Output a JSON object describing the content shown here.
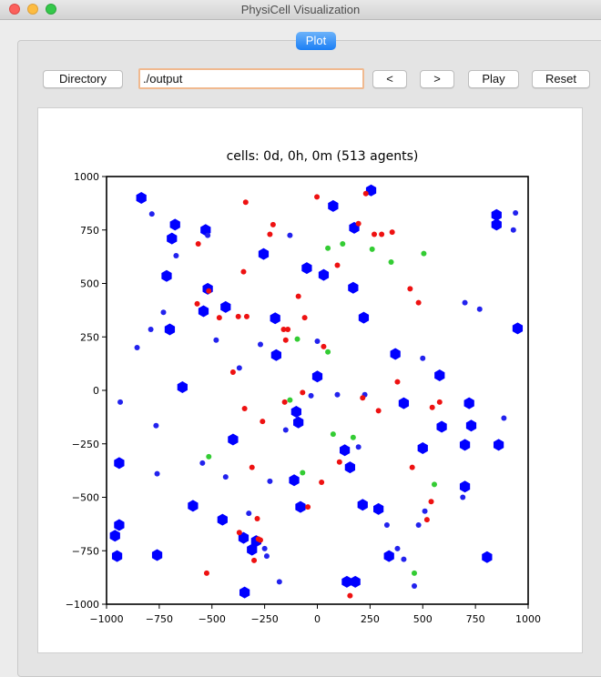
{
  "window": {
    "title": "PhysiCell Visualization"
  },
  "tabs": [
    {
      "label": "Plot"
    }
  ],
  "toolbar": {
    "directory_label": "Directory",
    "path_value": "./output",
    "prev_label": "<",
    "next_label": ">",
    "play_label": "Play",
    "reset_label": "Reset"
  },
  "chart_data": {
    "type": "scatter",
    "title": "cells: 0d, 0h, 0m (513 agents)",
    "xlabel": "",
    "ylabel": "",
    "xlim": [
      -1000,
      1000
    ],
    "ylim": [
      -1000,
      1000
    ],
    "xticks": [
      -1000,
      -750,
      -500,
      -250,
      0,
      250,
      500,
      750,
      1000
    ],
    "yticks": [
      -1000,
      -750,
      -500,
      -250,
      0,
      250,
      500,
      750,
      1000
    ],
    "grid": false,
    "colors": {
      "large": "#0000ff",
      "blue": "#2222ee",
      "red": "#ee1111",
      "green": "#33cc33"
    },
    "series": [
      {
        "kind": "large",
        "points": [
          [
            -835,
            900
          ],
          [
            -675,
            775
          ],
          [
            -530,
            750
          ],
          [
            -690,
            710
          ],
          [
            -255,
            638
          ],
          [
            -715,
            535
          ],
          [
            -50,
            572
          ],
          [
            75,
            862
          ],
          [
            255,
            935
          ],
          [
            175,
            760
          ],
          [
            30,
            540
          ],
          [
            -520,
            475
          ],
          [
            -435,
            390
          ],
          [
            -540,
            370
          ],
          [
            -200,
            337
          ],
          [
            -700,
            285
          ],
          [
            950,
            290
          ],
          [
            850,
            820
          ],
          [
            850,
            775
          ],
          [
            170,
            480
          ],
          [
            220,
            340
          ],
          [
            370,
            170
          ],
          [
            -195,
            165
          ],
          [
            0,
            65
          ],
          [
            580,
            70
          ],
          [
            -640,
            15
          ],
          [
            410,
            -60
          ],
          [
            720,
            -60
          ],
          [
            -100,
            -100
          ],
          [
            -90,
            -150
          ],
          [
            590,
            -170
          ],
          [
            -400,
            -230
          ],
          [
            730,
            -165
          ],
          [
            500,
            -270
          ],
          [
            700,
            -255
          ],
          [
            860,
            -255
          ],
          [
            130,
            -280
          ],
          [
            -940,
            -340
          ],
          [
            155,
            -360
          ],
          [
            -110,
            -420
          ],
          [
            700,
            -450
          ],
          [
            -80,
            -545
          ],
          [
            215,
            -535
          ],
          [
            -590,
            -540
          ],
          [
            290,
            -555
          ],
          [
            -450,
            -605
          ],
          [
            -940,
            -630
          ],
          [
            -960,
            -680
          ],
          [
            -350,
            -690
          ],
          [
            -290,
            -705
          ],
          [
            -310,
            -745
          ],
          [
            -950,
            -775
          ],
          [
            -760,
            -770
          ],
          [
            340,
            -775
          ],
          [
            805,
            -780
          ],
          [
            140,
            -895
          ],
          [
            180,
            -895
          ],
          [
            -345,
            -945
          ]
        ]
      },
      {
        "kind": "blue",
        "points": [
          [
            -785,
            825
          ],
          [
            -670,
            630
          ],
          [
            -520,
            725
          ],
          [
            -130,
            725
          ],
          [
            940,
            830
          ],
          [
            930,
            750
          ],
          [
            700,
            410
          ],
          [
            770,
            380
          ],
          [
            -730,
            365
          ],
          [
            -790,
            285
          ],
          [
            -480,
            235
          ],
          [
            -855,
            200
          ],
          [
            -370,
            105
          ],
          [
            -270,
            215
          ],
          [
            0,
            230
          ],
          [
            225,
            -20
          ],
          [
            500,
            150
          ],
          [
            95,
            -20
          ],
          [
            -30,
            -25
          ],
          [
            -935,
            -55
          ],
          [
            -765,
            -165
          ],
          [
            -545,
            -340
          ],
          [
            -760,
            -390
          ],
          [
            -435,
            -405
          ],
          [
            -325,
            -575
          ],
          [
            -250,
            -740
          ],
          [
            -240,
            -775
          ],
          [
            -180,
            -895
          ],
          [
            -150,
            -185
          ],
          [
            -225,
            -425
          ],
          [
            195,
            -265
          ],
          [
            330,
            -630
          ],
          [
            380,
            -740
          ],
          [
            410,
            -790
          ],
          [
            460,
            -915
          ],
          [
            480,
            -630
          ],
          [
            690,
            -500
          ],
          [
            510,
            -565
          ],
          [
            885,
            -130
          ]
        ]
      },
      {
        "kind": "red",
        "points": [
          [
            -340,
            880
          ],
          [
            -210,
            775
          ],
          [
            -225,
            730
          ],
          [
            -2,
            905
          ],
          [
            230,
            920
          ],
          [
            195,
            780
          ],
          [
            270,
            730
          ],
          [
            305,
            730
          ],
          [
            355,
            740
          ],
          [
            95,
            585
          ],
          [
            -565,
            685
          ],
          [
            -350,
            555
          ],
          [
            -515,
            465
          ],
          [
            -570,
            405
          ],
          [
            -465,
            340
          ],
          [
            -375,
            345
          ],
          [
            -335,
            345
          ],
          [
            -90,
            440
          ],
          [
            -160,
            285
          ],
          [
            -140,
            285
          ],
          [
            -60,
            340
          ],
          [
            -150,
            235
          ],
          [
            30,
            205
          ],
          [
            -400,
            85
          ],
          [
            -155,
            -55
          ],
          [
            -70,
            -10
          ],
          [
            -345,
            -85
          ],
          [
            -260,
            -145
          ],
          [
            -310,
            -360
          ],
          [
            -525,
            -855
          ],
          [
            -285,
            -600
          ],
          [
            -280,
            -695
          ],
          [
            -270,
            -700
          ],
          [
            -370,
            -665
          ],
          [
            215,
            -35
          ],
          [
            290,
            -95
          ],
          [
            380,
            40
          ],
          [
            440,
            475
          ],
          [
            480,
            410
          ],
          [
            520,
            -605
          ],
          [
            545,
            -80
          ],
          [
            580,
            -55
          ],
          [
            450,
            -360
          ],
          [
            105,
            -335
          ],
          [
            20,
            -430
          ],
          [
            -45,
            -545
          ],
          [
            -300,
            -795
          ],
          [
            155,
            -960
          ],
          [
            540,
            -520
          ]
        ]
      },
      {
        "kind": "green",
        "points": [
          [
            50,
            665
          ],
          [
            120,
            685
          ],
          [
            260,
            660
          ],
          [
            350,
            600
          ],
          [
            505,
            640
          ],
          [
            -95,
            240
          ],
          [
            50,
            180
          ],
          [
            -130,
            -45
          ],
          [
            -515,
            -310
          ],
          [
            75,
            -205
          ],
          [
            170,
            -220
          ],
          [
            -70,
            -385
          ],
          [
            555,
            -440
          ],
          [
            460,
            -855
          ]
        ]
      }
    ]
  }
}
